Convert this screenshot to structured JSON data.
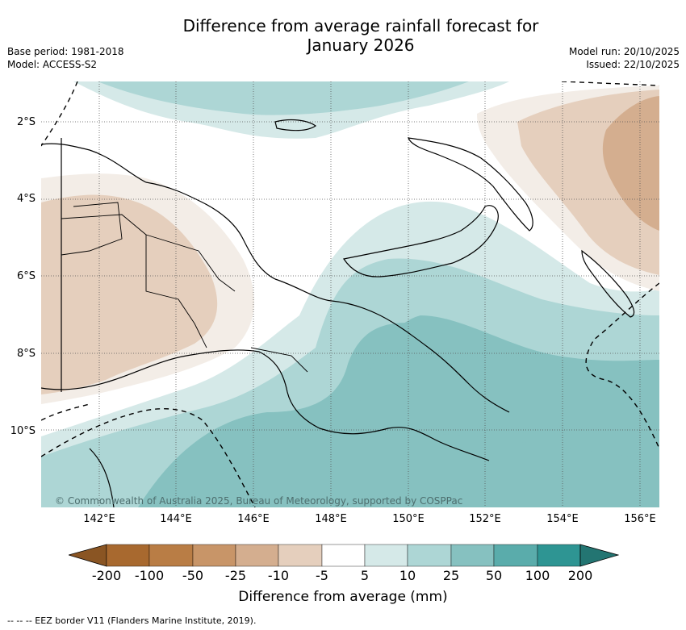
{
  "title_line1": "Difference from average rainfall forecast for",
  "title_line2": "January 2026",
  "base_period": "Base period: 1981-2018",
  "model": "Model: ACCESS-S2",
  "model_run": "Model run: 20/10/2025",
  "issued": "Issued: 22/10/2025",
  "copyright": "© Commonwealth of Australia 2025, Bureau of Meteorology, supported by COSPPac",
  "lat_labels": [
    "2°S",
    "4°S",
    "6°S",
    "8°S",
    "10°S"
  ],
  "lon_labels": [
    "142°E",
    "144°E",
    "146°E",
    "148°E",
    "150°E",
    "152°E",
    "154°E",
    "156°E"
  ],
  "colorbar": {
    "title": "Difference from average (mm)",
    "ticks": [
      "-200",
      "-100",
      "-50",
      "-25",
      "-10",
      "-5",
      "5",
      "10",
      "25",
      "50",
      "100",
      "200"
    ],
    "colors": [
      "#a8692f",
      "#b97d45",
      "#c89568",
      "#d4ae8f",
      "#e5cfbd",
      "#f3ede7",
      "#ffffff",
      "#d5e9e8",
      "#add6d5",
      "#86c1c0",
      "#5aacab",
      "#2e9593",
      "#237572"
    ]
  },
  "eez_note": "-- --  -- EEZ border V11 (Flanders Marine Institute, 2019)."
}
